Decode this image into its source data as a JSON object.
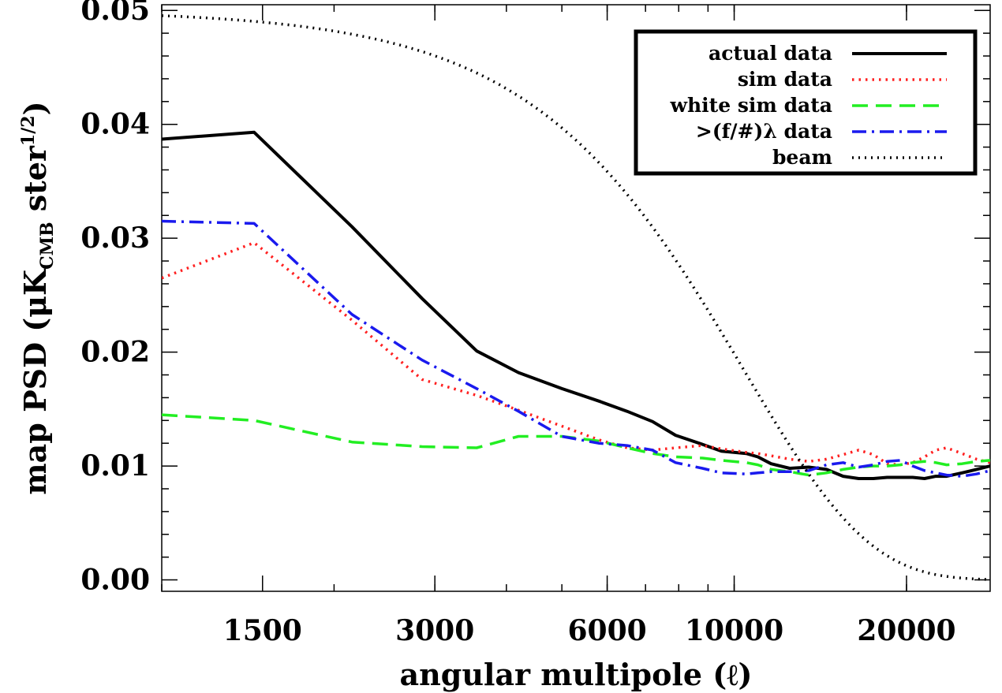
{
  "chart_data": {
    "type": "line",
    "xlabel": "angular multipole (ℓ)",
    "ylabel_main": "map PSD (μK",
    "ylabel_sub": "CMB",
    "ylabel_tail": " ster",
    "ylabel_sup": "1/2",
    "ylabel_close": ")",
    "x_scale": "log",
    "xlim": [
      1000,
      28000
    ],
    "ylim": [
      -0.001,
      0.0505
    ],
    "x_ticks": [
      {
        "value": 1500,
        "label": "1500"
      },
      {
        "value": 3000,
        "label": "3000"
      },
      {
        "value": 6000,
        "label": "6000"
      },
      {
        "value": 10000,
        "label": "10000"
      },
      {
        "value": 20000,
        "label": "20000"
      }
    ],
    "y_ticks": [
      {
        "value": 0.0,
        "label": "0.00"
      },
      {
        "value": 0.01,
        "label": "0.01"
      },
      {
        "value": 0.02,
        "label": "0.02"
      },
      {
        "value": 0.03,
        "label": "0.03"
      },
      {
        "value": 0.04,
        "label": "0.04"
      },
      {
        "value": 0.05,
        "label": "0.05"
      }
    ],
    "grid": false,
    "legend_position": "top-right",
    "series": [
      {
        "name": "actual data",
        "color": "#000000",
        "dash": "solid",
        "points": [
          [
            1000,
            0.0387
          ],
          [
            1450,
            0.0393
          ],
          [
            2150,
            0.031
          ],
          [
            2850,
            0.0247
          ],
          [
            3550,
            0.0201
          ],
          [
            4200,
            0.0182
          ],
          [
            5000,
            0.0168
          ],
          [
            5800,
            0.0157
          ],
          [
            6500,
            0.0148
          ],
          [
            7200,
            0.0139
          ],
          [
            7900,
            0.0127
          ],
          [
            8800,
            0.0119
          ],
          [
            9500,
            0.0113
          ],
          [
            10500,
            0.0111
          ],
          [
            11000,
            0.0108
          ],
          [
            11600,
            0.0102
          ],
          [
            12500,
            0.0098
          ],
          [
            13500,
            0.0099
          ],
          [
            14500,
            0.0097
          ],
          [
            15500,
            0.0091
          ],
          [
            16500,
            0.0089
          ],
          [
            17500,
            0.0089
          ],
          [
            18500,
            0.009
          ],
          [
            19500,
            0.009
          ],
          [
            20500,
            0.009
          ],
          [
            21500,
            0.0089
          ],
          [
            22500,
            0.0091
          ],
          [
            23500,
            0.0091
          ],
          [
            25000,
            0.0094
          ],
          [
            26500,
            0.0097
          ],
          [
            28000,
            0.01
          ]
        ]
      },
      {
        "name": "sim data",
        "color": "#ff2020",
        "dash": "dotted",
        "points": [
          [
            1000,
            0.0265
          ],
          [
            1450,
            0.0296
          ],
          [
            2150,
            0.0228
          ],
          [
            2850,
            0.0176
          ],
          [
            3550,
            0.0162
          ],
          [
            4200,
            0.0149
          ],
          [
            5000,
            0.0135
          ],
          [
            5800,
            0.0123
          ],
          [
            6500,
            0.0116
          ],
          [
            7200,
            0.0114
          ],
          [
            7900,
            0.0116
          ],
          [
            8800,
            0.0118
          ],
          [
            9500,
            0.0115
          ],
          [
            10500,
            0.0112
          ],
          [
            11000,
            0.0111
          ],
          [
            11600,
            0.0109
          ],
          [
            12500,
            0.0106
          ],
          [
            13500,
            0.0104
          ],
          [
            14500,
            0.0106
          ],
          [
            15500,
            0.011
          ],
          [
            16500,
            0.0114
          ],
          [
            17500,
            0.011
          ],
          [
            18500,
            0.0102
          ],
          [
            19500,
            0.0101
          ],
          [
            20500,
            0.0103
          ],
          [
            21500,
            0.0108
          ],
          [
            22500,
            0.0114
          ],
          [
            23500,
            0.0116
          ],
          [
            25000,
            0.0111
          ],
          [
            26500,
            0.0106
          ],
          [
            28000,
            0.0103
          ]
        ]
      },
      {
        "name": "white sim data",
        "color": "#22ee22",
        "dash": "dashed",
        "points": [
          [
            1000,
            0.0145
          ],
          [
            1450,
            0.014
          ],
          [
            2150,
            0.0121
          ],
          [
            2850,
            0.0117
          ],
          [
            3550,
            0.0116
          ],
          [
            4200,
            0.0126
          ],
          [
            5000,
            0.0126
          ],
          [
            5800,
            0.0122
          ],
          [
            6500,
            0.0116
          ],
          [
            7200,
            0.0111
          ],
          [
            7900,
            0.0108
          ],
          [
            8800,
            0.0107
          ],
          [
            9500,
            0.0105
          ],
          [
            10500,
            0.0103
          ],
          [
            11000,
            0.0101
          ],
          [
            11600,
            0.0097
          ],
          [
            12500,
            0.0095
          ],
          [
            13500,
            0.0092
          ],
          [
            14500,
            0.0094
          ],
          [
            15500,
            0.0097
          ],
          [
            16500,
            0.0099
          ],
          [
            17500,
            0.01
          ],
          [
            18500,
            0.01
          ],
          [
            19500,
            0.0101
          ],
          [
            20500,
            0.0103
          ],
          [
            21500,
            0.0104
          ],
          [
            22500,
            0.0103
          ],
          [
            23500,
            0.0101
          ],
          [
            25000,
            0.0102
          ],
          [
            26500,
            0.0104
          ],
          [
            28000,
            0.0105
          ]
        ]
      },
      {
        "name": ">(f/#)λ data",
        "color": "#1a1aee",
        "dash": "dashdot",
        "points": [
          [
            1000,
            0.0315
          ],
          [
            1450,
            0.0313
          ],
          [
            2150,
            0.0233
          ],
          [
            2850,
            0.0193
          ],
          [
            3550,
            0.0168
          ],
          [
            4200,
            0.0148
          ],
          [
            5000,
            0.0126
          ],
          [
            5800,
            0.012
          ],
          [
            6500,
            0.0118
          ],
          [
            7200,
            0.0114
          ],
          [
            7900,
            0.0103
          ],
          [
            8800,
            0.0098
          ],
          [
            9500,
            0.0094
          ],
          [
            10500,
            0.0093
          ],
          [
            11000,
            0.0094
          ],
          [
            11600,
            0.0095
          ],
          [
            12500,
            0.0095
          ],
          [
            13500,
            0.0096
          ],
          [
            14500,
            0.0101
          ],
          [
            15500,
            0.0103
          ],
          [
            16500,
            0.0099
          ],
          [
            17500,
            0.0101
          ],
          [
            18500,
            0.0104
          ],
          [
            19500,
            0.0105
          ],
          [
            20500,
            0.01
          ],
          [
            21500,
            0.0096
          ],
          [
            22500,
            0.0094
          ],
          [
            23500,
            0.0092
          ],
          [
            25000,
            0.0091
          ],
          [
            26500,
            0.0093
          ],
          [
            28000,
            0.0096
          ]
        ]
      },
      {
        "name": "beam",
        "color": "#000000",
        "dash": "dotted-fine",
        "beam_fwhm_arcmin": 1.1,
        "points": []
      }
    ]
  }
}
